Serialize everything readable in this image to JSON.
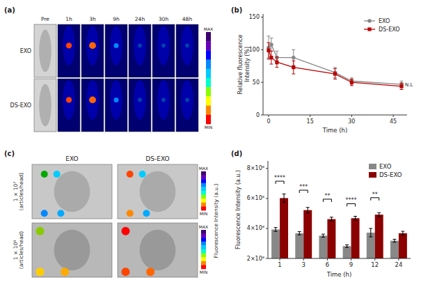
{
  "chart_data": [
    {
      "type": "image_grid",
      "title": "(a)",
      "categories": [
        "Pre",
        "1h",
        "3h",
        "9h",
        "24h",
        "30h",
        "48h"
      ],
      "rows": [
        "EXO",
        "DS-EXO"
      ],
      "colorbar": {
        "colors": [
          "#3d0070",
          "#6600bb",
          "#0000ff",
          "#0088ff",
          "#00ccff",
          "#00ffcc",
          "#88ff00",
          "#ffff00",
          "#ff8800",
          "#ff0000"
        ],
        "labels": [
          "MAX",
          "MIN"
        ]
      }
    },
    {
      "type": "line",
      "title": "(b)",
      "xlabel": "Time (h)",
      "ylabel": "Relative fluorescence\nIntensity (%)",
      "x": [
        0,
        1,
        3,
        9,
        24,
        30,
        48
      ],
      "series": [
        {
          "name": "EXO",
          "color": "#888888",
          "marker": "circle",
          "line_style": "solid",
          "values": [
            103,
            108,
            88,
            88,
            65,
            52,
            47
          ],
          "error": [
            18,
            10,
            10,
            12,
            8,
            5,
            5
          ]
        },
        {
          "name": "DS-EXO",
          "color": "#bb0000",
          "marker": "square",
          "line_style": "solid",
          "values": [
            99,
            88,
            81,
            73,
            63,
            50,
            44
          ],
          "error": [
            12,
            10,
            8,
            10,
            8,
            5,
            5
          ]
        }
      ],
      "xlim": [
        -2,
        50
      ],
      "ylim": [
        0,
        155
      ],
      "xticks": [
        0,
        15,
        30,
        45
      ],
      "yticks": [
        0,
        50,
        100,
        150
      ],
      "grid": false,
      "legend": "upper right",
      "annotations": [
        {
          "text": "N.L",
          "x": 49,
          "y": 46
        }
      ]
    },
    {
      "type": "image_grid",
      "title": "(c)",
      "categories": [
        "EXO",
        "DS-EXO"
      ],
      "rows": [
        "1 × 10⁷\n(articles/head)",
        "1 × 10⁸\n(articles/head)"
      ],
      "colorbar": {
        "colors": [
          "#3d0070",
          "#6600bb",
          "#0000ff",
          "#0088ff",
          "#00ccff",
          "#00ffcc",
          "#88ff00",
          "#ffff00",
          "#ff8800",
          "#ff0000"
        ],
        "labels": [
          "MAX",
          "MIN"
        ],
        "title": "Fluorescence Intensity (a.u.)"
      }
    },
    {
      "type": "bar",
      "title": "(d)",
      "xlabel": "Time (h)",
      "ylabel": "Fluorescence Intensity (a.u.)",
      "categories": [
        "1",
        "3",
        "6",
        "9",
        "12",
        "24"
      ],
      "series": [
        {
          "name": "EXO",
          "color": "#888888",
          "values": [
            393000000,
            368000000,
            352000000,
            282000000,
            372000000,
            318000000
          ],
          "error": [
            13000000,
            11000000,
            10000000,
            9000000,
            28000000,
            10000000
          ]
        },
        {
          "name": "DS-EXO",
          "color": "#8b0000",
          "values": [
            602000000,
            522000000,
            462000000,
            468000000,
            492000000,
            368000000
          ],
          "error": [
            28000000,
            18000000,
            13000000,
            13000000,
            13000000,
            13000000
          ]
        }
      ],
      "ylim": [
        200000000,
        850000000
      ],
      "yticks": [
        {
          "value": 200000000,
          "label": "2×10⁸"
        },
        {
          "value": 400000000,
          "label": "4×10⁸"
        },
        {
          "value": 600000000,
          "label": "6×10⁸"
        },
        {
          "value": 800000000,
          "label": "8×10⁸"
        }
      ],
      "grid": false,
      "legend": "upper right",
      "annotations": [
        {
          "text": "****",
          "x": "1",
          "y": 715000000
        },
        {
          "text": "***",
          "x": "3",
          "y": 655000000
        },
        {
          "text": "**",
          "x": "6",
          "y": 595000000
        },
        {
          "text": "****",
          "x": "9",
          "y": 565000000
        },
        {
          "text": "**",
          "x": "12",
          "y": 605000000
        }
      ]
    }
  ]
}
